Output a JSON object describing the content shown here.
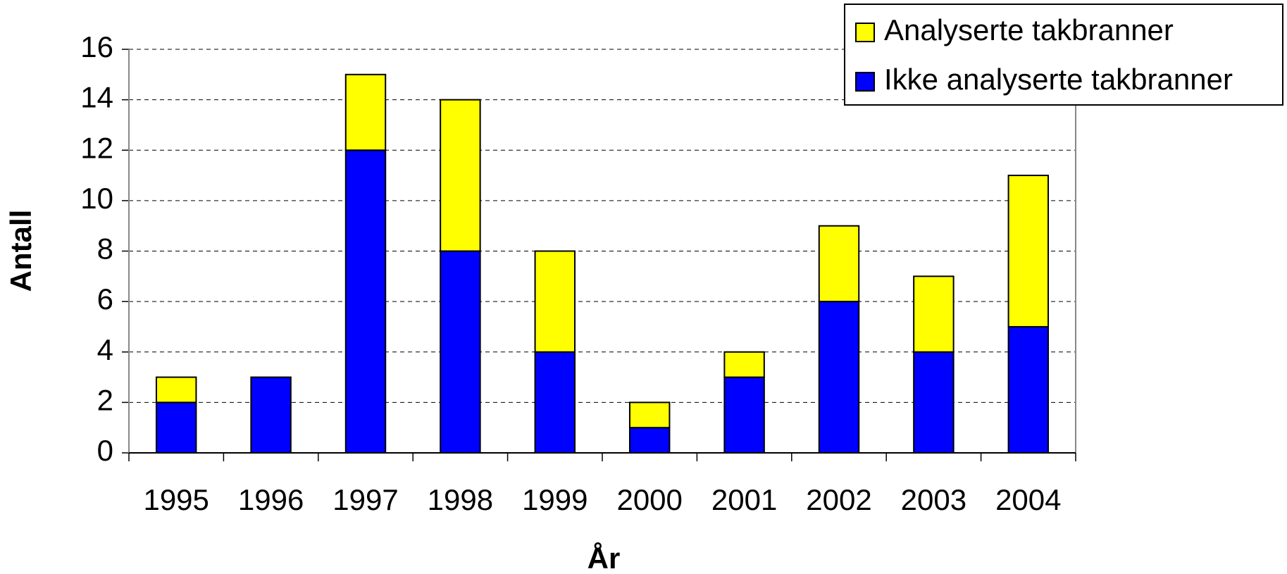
{
  "chart_data": {
    "type": "stacked_bar",
    "x_label": "År",
    "y_label": "Antall",
    "categories": [
      "1995",
      "1996",
      "1997",
      "1998",
      "1999",
      "2000",
      "2001",
      "2002",
      "2003",
      "2004"
    ],
    "series": [
      {
        "name": "Ikke analyserte takbranner",
        "color": "#0000ff",
        "values": [
          2,
          3,
          12,
          8,
          4,
          1,
          3,
          6,
          4,
          5
        ]
      },
      {
        "name": "Analyserte takbranner",
        "color": "#ffff00",
        "values": [
          1,
          0,
          3,
          6,
          4,
          1,
          1,
          3,
          3,
          6
        ]
      }
    ],
    "ylim": [
      0,
      16
    ],
    "yticks": [
      0,
      2,
      4,
      6,
      8,
      10,
      12,
      14,
      16
    ],
    "grid": true,
    "legend": "top-right"
  }
}
